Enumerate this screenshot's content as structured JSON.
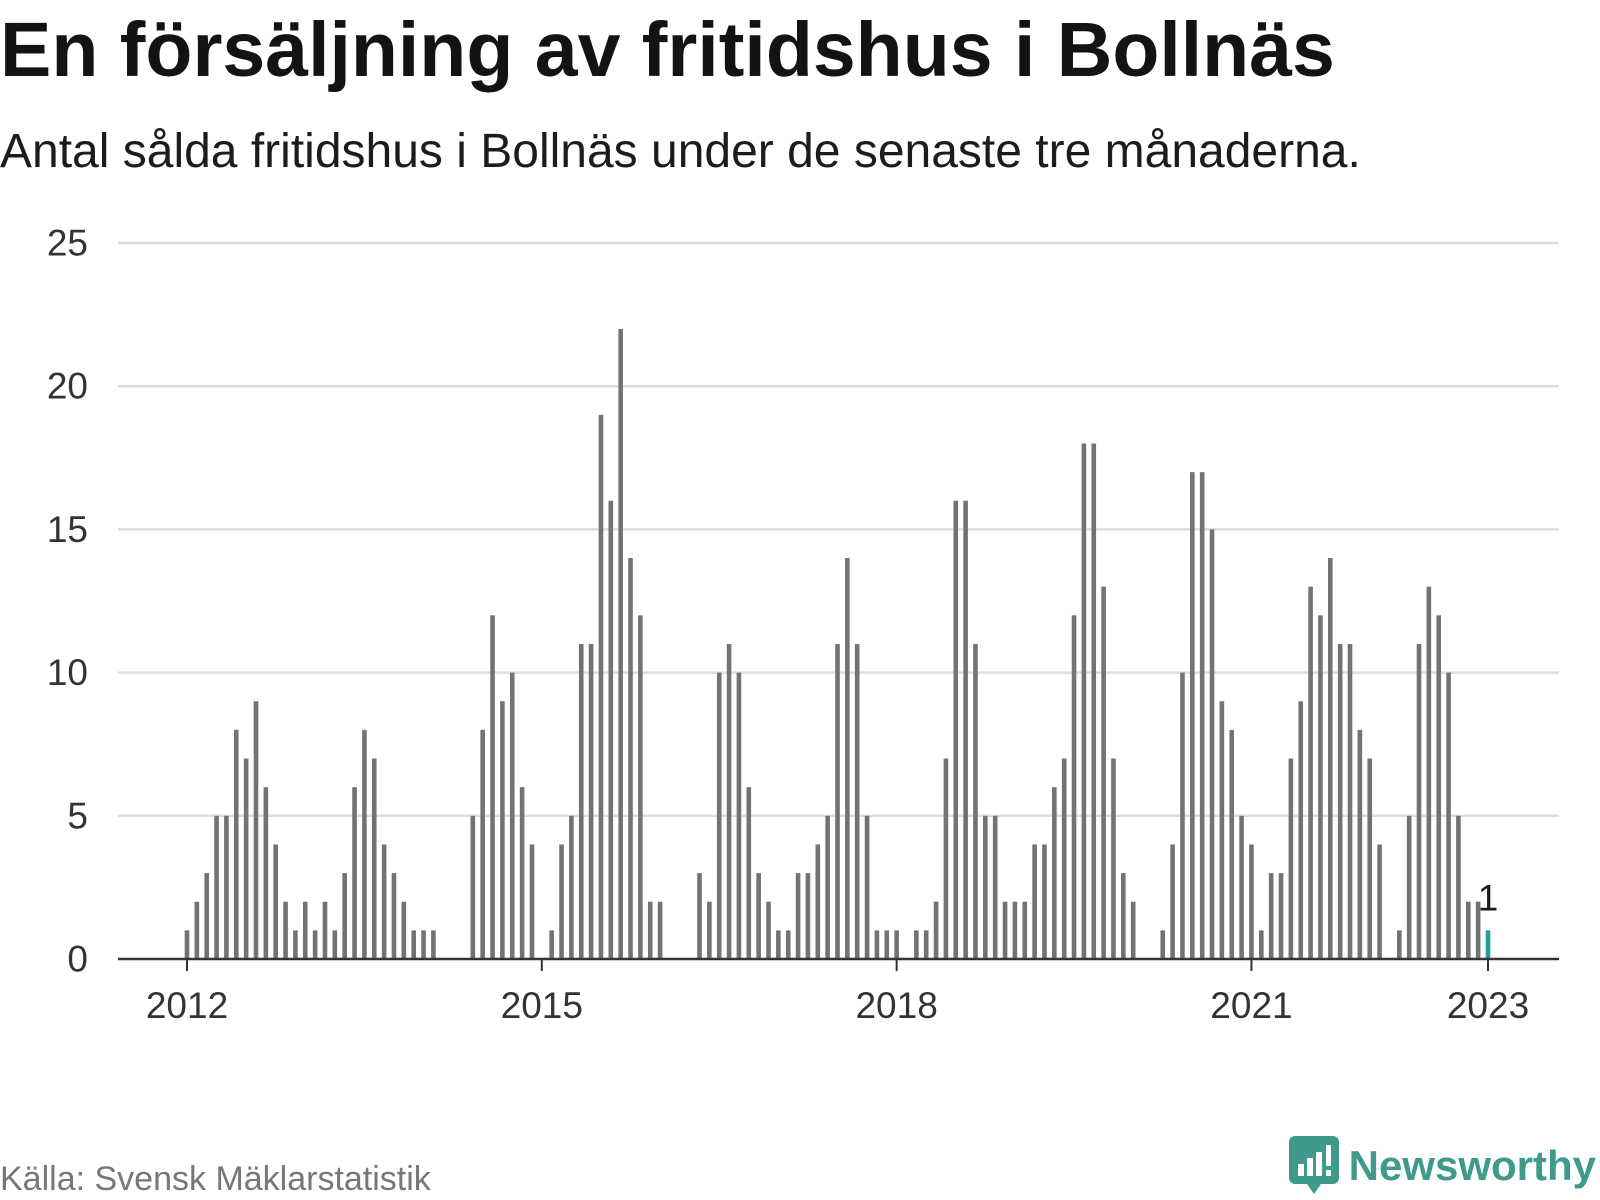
{
  "chart_data": {
    "type": "bar",
    "title": "En försäljning av fritidshus i Bollnäs",
    "subtitle": "Antal sålda fritidshus i Bollnäs under de senaste tre månaderna.",
    "x": [
      "2012-01",
      "2012-02",
      "2012-03",
      "2012-04",
      "2012-05",
      "2012-06",
      "2012-07",
      "2012-08",
      "2012-09",
      "2012-10",
      "2012-11",
      "2012-12",
      "2013-01",
      "2013-02",
      "2013-03",
      "2013-04",
      "2013-05",
      "2013-06",
      "2013-07",
      "2013-08",
      "2013-09",
      "2013-10",
      "2013-11",
      "2013-12",
      "2014-01",
      "2014-02",
      "2014-03",
      "2014-04",
      "2014-05",
      "2014-06",
      "2014-07",
      "2014-08",
      "2014-09",
      "2014-10",
      "2014-11",
      "2014-12",
      "2015-01",
      "2015-02",
      "2015-03",
      "2015-04",
      "2015-05",
      "2015-06",
      "2015-07",
      "2015-08",
      "2015-09",
      "2015-10",
      "2015-11",
      "2015-12",
      "2016-01",
      "2016-02",
      "2016-03",
      "2016-04",
      "2016-05",
      "2016-06",
      "2016-07",
      "2016-08",
      "2016-09",
      "2016-10",
      "2016-11",
      "2016-12",
      "2017-01",
      "2017-02",
      "2017-03",
      "2017-04",
      "2017-05",
      "2017-06",
      "2017-07",
      "2017-08",
      "2017-09",
      "2017-10",
      "2017-11",
      "2017-12",
      "2018-01",
      "2018-02",
      "2018-03",
      "2018-04",
      "2018-05",
      "2018-06",
      "2018-07",
      "2018-08",
      "2018-09",
      "2018-10",
      "2018-11",
      "2018-12",
      "2019-01",
      "2019-02",
      "2019-03",
      "2019-04",
      "2019-05",
      "2019-06",
      "2019-07",
      "2019-08",
      "2019-09",
      "2019-10",
      "2019-11",
      "2019-12",
      "2020-01",
      "2020-02",
      "2020-03",
      "2020-04",
      "2020-05",
      "2020-06",
      "2020-07",
      "2020-08",
      "2020-09",
      "2020-10",
      "2020-11",
      "2020-12",
      "2021-01",
      "2021-02",
      "2021-03",
      "2021-04",
      "2021-05",
      "2021-06",
      "2021-07",
      "2021-08",
      "2021-09",
      "2021-10",
      "2021-11",
      "2021-12",
      "2022-01",
      "2022-02",
      "2022-03",
      "2022-04",
      "2022-05",
      "2022-06",
      "2022-07",
      "2022-08",
      "2022-09",
      "2022-10",
      "2022-11",
      "2022-12",
      "2023-01"
    ],
    "values": [
      1,
      2,
      3,
      5,
      5,
      8,
      7,
      9,
      6,
      4,
      2,
      1,
      2,
      1,
      2,
      1,
      3,
      6,
      8,
      7,
      4,
      3,
      2,
      1,
      1,
      1,
      0,
      0,
      0,
      5,
      8,
      12,
      9,
      10,
      6,
      4,
      0,
      1,
      4,
      5,
      11,
      11,
      19,
      16,
      22,
      14,
      12,
      2,
      2,
      0,
      0,
      0,
      3,
      2,
      10,
      11,
      10,
      6,
      3,
      2,
      1,
      1,
      3,
      3,
      4,
      5,
      11,
      14,
      11,
      5,
      1,
      1,
      1,
      0,
      1,
      1,
      2,
      7,
      16,
      16,
      11,
      5,
      5,
      2,
      2,
      2,
      4,
      4,
      6,
      7,
      12,
      18,
      18,
      13,
      7,
      3,
      2,
      0,
      0,
      1,
      4,
      10,
      17,
      17,
      15,
      9,
      8,
      5,
      4,
      1,
      3,
      3,
      7,
      9,
      13,
      12,
      14,
      11,
      11,
      8,
      7,
      4,
      0,
      1,
      5,
      11,
      13,
      12,
      10,
      5,
      2,
      2,
      1
    ],
    "ylim": [
      0,
      25
    ],
    "y_ticks": [
      0,
      5,
      10,
      15,
      20,
      25
    ],
    "x_ticks": [
      "2012",
      "2015",
      "2018",
      "2021",
      "2023"
    ],
    "highlight": {
      "x": "2023-01",
      "label": "1"
    },
    "grid": true
  },
  "footer": {
    "source": "Källa: Svensk Mäklarstatistik",
    "logo_text": "Newsworthy"
  },
  "logo_icon": "newsworthy-chart-bubble-icon",
  "colors": {
    "bar": "#737373",
    "highlight": "#1f9e91",
    "grid": "#dddddd",
    "axis": "#333333",
    "brand": "#3f9a8c"
  }
}
